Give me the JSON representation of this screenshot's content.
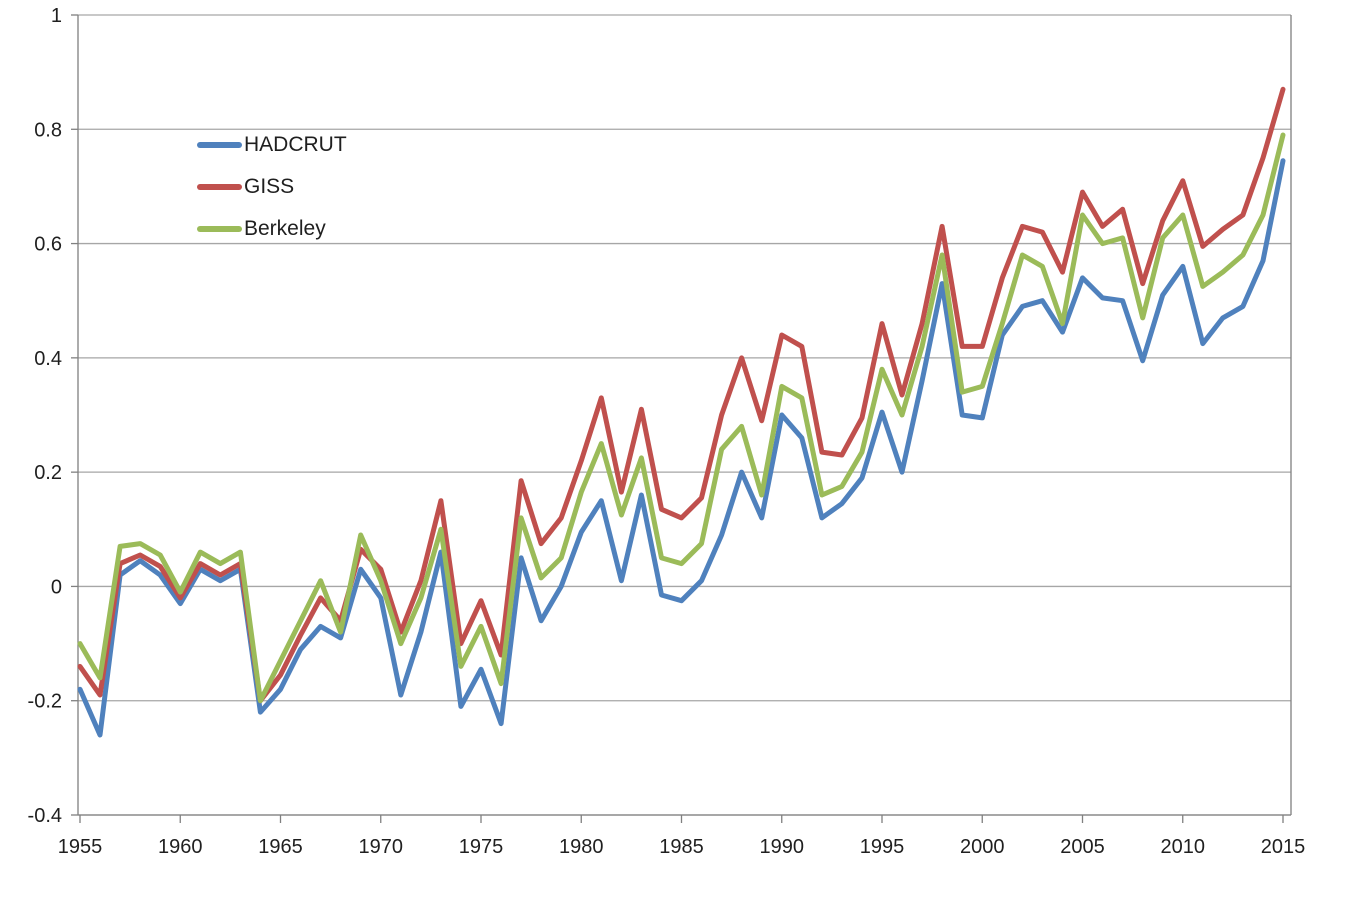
{
  "chart_data": {
    "type": "line",
    "title": "",
    "xlabel": "",
    "ylabel": "",
    "xlim": [
      1955,
      2015
    ],
    "ylim": [
      -0.4,
      1.0
    ],
    "grid": true,
    "legend_position": "inside-top-left",
    "background_color": "#ffffff",
    "gridline_color": "#a6a6a6",
    "axis_color": "#808080",
    "label_color": "#1f1f1f",
    "x_ticks": [
      {
        "value": 1955,
        "label": "1955"
      },
      {
        "value": 1960,
        "label": "1960"
      },
      {
        "value": 1965,
        "label": "1965"
      },
      {
        "value": 1970,
        "label": "1970"
      },
      {
        "value": 1975,
        "label": "1975"
      },
      {
        "value": 1980,
        "label": "1980"
      },
      {
        "value": 1985,
        "label": "1985"
      },
      {
        "value": 1990,
        "label": "1990"
      },
      {
        "value": 1995,
        "label": "1995"
      },
      {
        "value": 2000,
        "label": "2000"
      },
      {
        "value": 2005,
        "label": "2005"
      },
      {
        "value": 2010,
        "label": "2010"
      },
      {
        "value": 2015,
        "label": "2015"
      }
    ],
    "y_ticks": [
      {
        "value": 1.0,
        "label": "1"
      },
      {
        "value": 0.8,
        "label": "0.8"
      },
      {
        "value": 0.6,
        "label": "0.6"
      },
      {
        "value": 0.4,
        "label": "0.4"
      },
      {
        "value": 0.2,
        "label": "0.2"
      },
      {
        "value": 0.0,
        "label": "0"
      },
      {
        "value": -0.2,
        "label": "-0.2"
      },
      {
        "value": -0.4,
        "label": "-0.4"
      }
    ],
    "x": [
      1955,
      1956,
      1957,
      1958,
      1959,
      1960,
      1961,
      1962,
      1963,
      1964,
      1965,
      1966,
      1967,
      1968,
      1969,
      1970,
      1971,
      1972,
      1973,
      1974,
      1975,
      1976,
      1977,
      1978,
      1979,
      1980,
      1981,
      1982,
      1983,
      1984,
      1985,
      1986,
      1987,
      1988,
      1989,
      1990,
      1991,
      1992,
      1993,
      1994,
      1995,
      1996,
      1997,
      1998,
      1999,
      2000,
      2001,
      2002,
      2003,
      2004,
      2005,
      2006,
      2007,
      2008,
      2009,
      2010,
      2011,
      2012,
      2013,
      2014,
      2015
    ],
    "series": [
      {
        "name": "HADCRUT",
        "color": "#4F81BD",
        "values": [
          -0.18,
          -0.26,
          0.02,
          0.045,
          0.02,
          -0.03,
          0.03,
          0.01,
          0.03,
          -0.22,
          -0.18,
          -0.11,
          -0.07,
          -0.09,
          0.03,
          -0.02,
          -0.19,
          -0.08,
          0.06,
          -0.21,
          -0.145,
          -0.24,
          0.05,
          -0.06,
          0.0,
          0.095,
          0.15,
          0.01,
          0.16,
          -0.015,
          -0.025,
          0.01,
          0.09,
          0.2,
          0.12,
          0.3,
          0.26,
          0.12,
          0.145,
          0.19,
          0.305,
          0.2,
          0.36,
          0.53,
          0.3,
          0.295,
          0.44,
          0.49,
          0.5,
          0.445,
          0.54,
          0.505,
          0.5,
          0.395,
          0.51,
          0.56,
          0.425,
          0.47,
          0.49,
          0.57,
          0.745
        ]
      },
      {
        "name": "GISS",
        "color": "#C0504D",
        "values": [
          -0.14,
          -0.19,
          0.04,
          0.055,
          0.035,
          -0.02,
          0.04,
          0.02,
          0.04,
          -0.2,
          -0.155,
          -0.085,
          -0.02,
          -0.06,
          0.065,
          0.03,
          -0.08,
          0.01,
          0.15,
          -0.1,
          -0.025,
          -0.12,
          0.185,
          0.075,
          0.12,
          0.22,
          0.33,
          0.165,
          0.31,
          0.135,
          0.12,
          0.155,
          0.3,
          0.4,
          0.29,
          0.44,
          0.42,
          0.235,
          0.23,
          0.295,
          0.46,
          0.335,
          0.46,
          0.63,
          0.42,
          0.42,
          0.54,
          0.63,
          0.62,
          0.55,
          0.69,
          0.63,
          0.66,
          0.53,
          0.64,
          0.71,
          0.595,
          0.625,
          0.65,
          0.75,
          0.87
        ]
      },
      {
        "name": "Berkeley",
        "color": "#9BBB59",
        "values": [
          -0.1,
          -0.16,
          0.07,
          0.075,
          0.055,
          -0.01,
          0.06,
          0.04,
          0.06,
          -0.2,
          -0.13,
          -0.06,
          0.01,
          -0.08,
          0.09,
          0.01,
          -0.1,
          -0.02,
          0.1,
          -0.14,
          -0.07,
          -0.17,
          0.12,
          0.015,
          0.05,
          0.165,
          0.25,
          0.125,
          0.225,
          0.05,
          0.04,
          0.075,
          0.24,
          0.28,
          0.16,
          0.35,
          0.33,
          0.16,
          0.175,
          0.235,
          0.38,
          0.3,
          0.42,
          0.58,
          0.34,
          0.35,
          0.46,
          0.58,
          0.56,
          0.46,
          0.65,
          0.6,
          0.61,
          0.47,
          0.61,
          0.65,
          0.525,
          0.55,
          0.58,
          0.65,
          0.79
        ]
      }
    ]
  }
}
